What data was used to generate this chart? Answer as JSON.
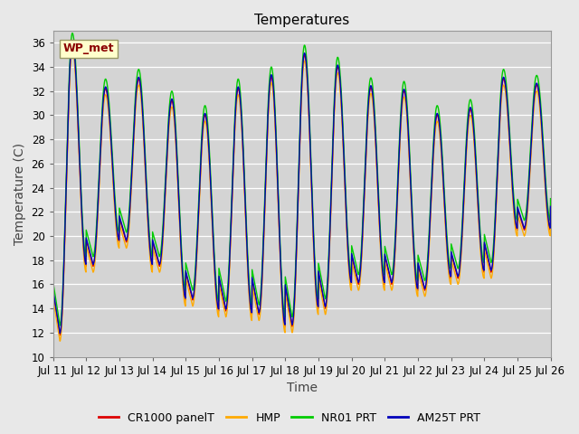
{
  "title": "Temperatures",
  "xlabel": "Time",
  "ylabel": "Temperature (C)",
  "ylim": [
    10,
    37
  ],
  "yticks": [
    10,
    12,
    14,
    16,
    18,
    20,
    22,
    24,
    26,
    28,
    30,
    32,
    34,
    36
  ],
  "fig_bg_color": "#e8e8e8",
  "plot_bg_color": "#d4d4d4",
  "series_colors": {
    "CR1000 panelT": "#dd0000",
    "HMP": "#ffaa00",
    "NR01 PRT": "#00cc00",
    "AM25T PRT": "#0000bb"
  },
  "annotation_text": "WP_met",
  "start_day": 11,
  "end_day": 26,
  "n_points": 2160,
  "daily_min": [
    11.8,
    17.5,
    19.5,
    17.5,
    14.7,
    13.8,
    13.5,
    12.5,
    14.0,
    16.0,
    16.0,
    15.5,
    16.5,
    17.0,
    20.5
  ],
  "daily_max": [
    36.0,
    32.2,
    33.0,
    31.2,
    30.0,
    32.2,
    33.2,
    35.0,
    34.0,
    32.3,
    32.0,
    30.0,
    30.5,
    33.0,
    32.5
  ],
  "offsets": {
    "CR1000 panelT": 0.0,
    "HMP": -0.5,
    "NR01 PRT": 0.8,
    "AM25T PRT": 0.15
  },
  "linewidth": 1.0,
  "font_size": 10,
  "tick_font_size": 8.5,
  "title_fontsize": 11
}
